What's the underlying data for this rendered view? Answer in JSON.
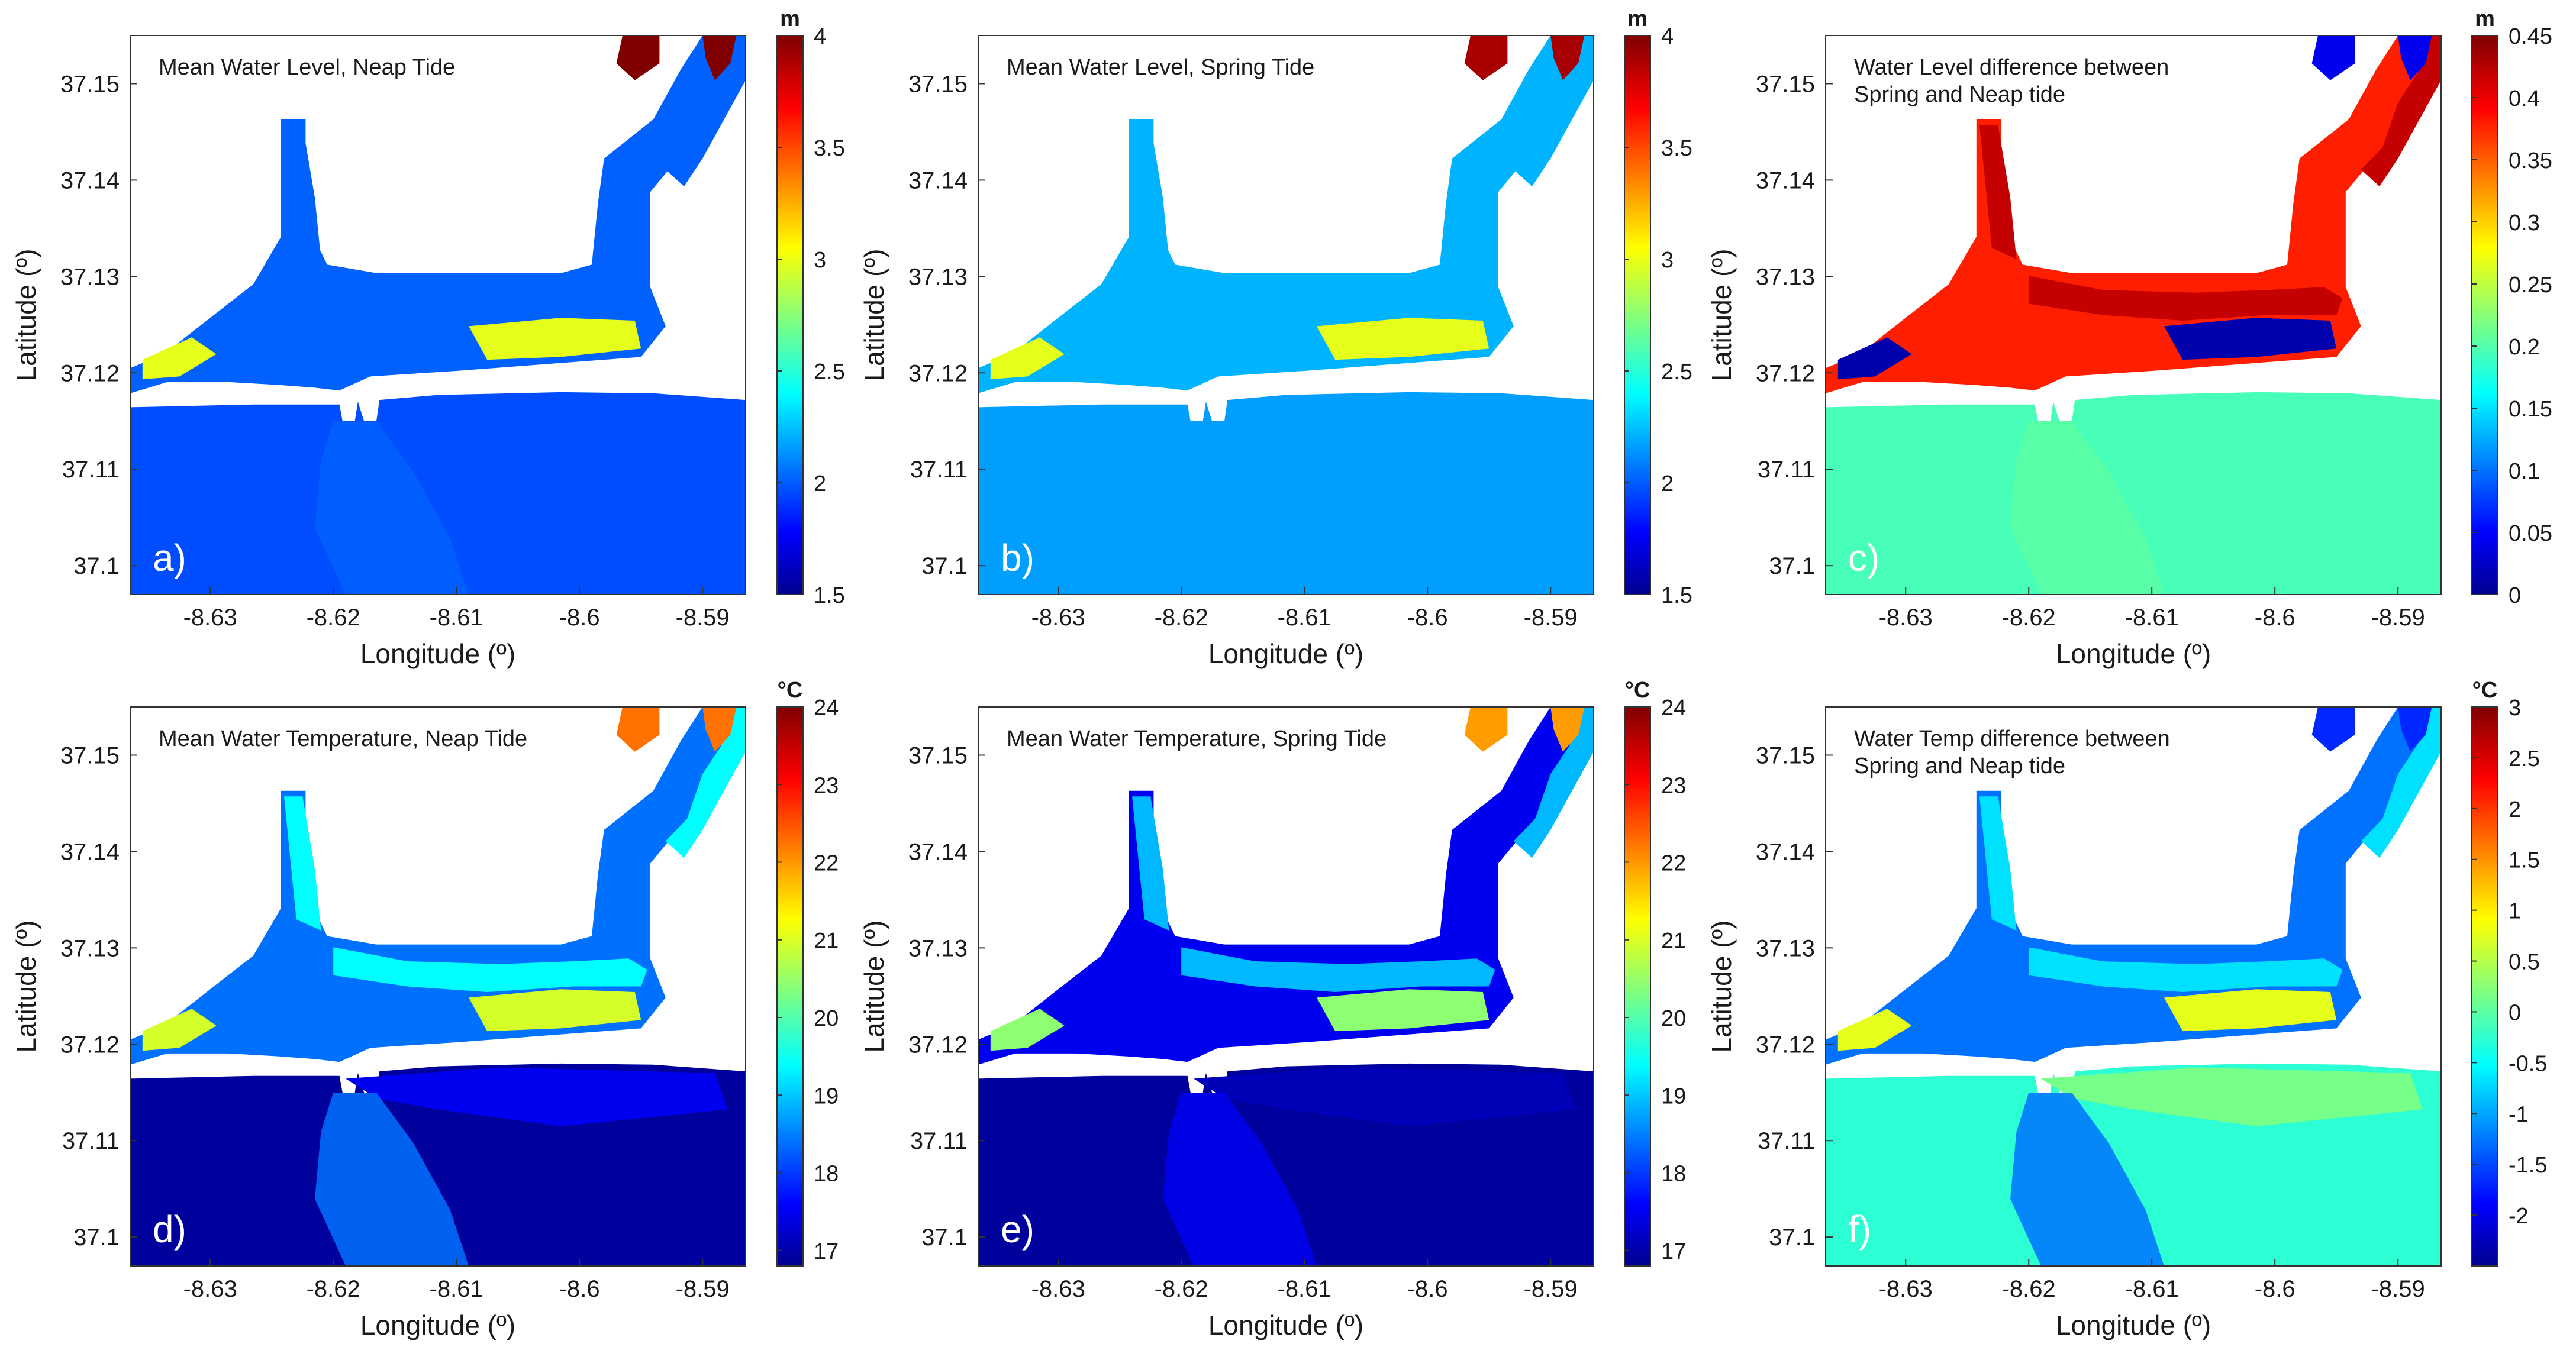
{
  "figure": {
    "colors": {
      "land": "#ffffff",
      "frame": "#333333",
      "text": "#1a1a1a",
      "panel_letter": "#ffffff",
      "colormap": "jet"
    }
  },
  "chart_data": [
    {
      "type": "heatmap",
      "panel": "a)",
      "title": "Mean Water Level, Neap Tide",
      "xlabel": "Longitude (º)",
      "ylabel": "Latitude (º)",
      "xlim": [
        -8.6365,
        -8.5865
      ],
      "ylim": [
        37.097,
        37.155
      ],
      "xticks": [
        -8.63,
        -8.62,
        -8.61,
        -8.6,
        -8.59
      ],
      "xtick_labels": [
        "-8.63",
        "-8.62",
        "-8.61",
        "-8.6",
        "-8.59"
      ],
      "yticks": [
        37.1,
        37.11,
        37.12,
        37.13,
        37.14,
        37.15
      ],
      "ytick_labels": [
        "37.1",
        "37.11",
        "37.12",
        "37.13",
        "37.14",
        "37.15"
      ],
      "colorbar": {
        "unit": "m",
        "min": 1.5,
        "max": 4,
        "ticks": [
          1.5,
          2,
          2.5,
          3,
          3.5,
          4
        ],
        "tick_labels": [
          "1.5",
          "2",
          "2.5",
          "3",
          "3.5",
          "4"
        ]
      },
      "field": {
        "ocean": 2.0,
        "lagoon": 2.05,
        "channels": 2.05,
        "tidal_flats": 3.0,
        "inlet_jet": 2.05,
        "upper_channels": 4.0
      },
      "grid": false,
      "legend": "colorbar-right"
    },
    {
      "type": "heatmap",
      "panel": "b)",
      "title": "Mean Water Level, Spring Tide",
      "xlabel": "Longitude (º)",
      "ylabel": "Latitude (º)",
      "xlim": [
        -8.6365,
        -8.5865
      ],
      "ylim": [
        37.097,
        37.155
      ],
      "xticks": [
        -8.63,
        -8.62,
        -8.61,
        -8.6,
        -8.59
      ],
      "xtick_labels": [
        "-8.63",
        "-8.62",
        "-8.61",
        "-8.6",
        "-8.59"
      ],
      "yticks": [
        37.1,
        37.11,
        37.12,
        37.13,
        37.14,
        37.15
      ],
      "ytick_labels": [
        "37.1",
        "37.11",
        "37.12",
        "37.13",
        "37.14",
        "37.15"
      ],
      "colorbar": {
        "unit": "m",
        "min": 1.5,
        "max": 4,
        "ticks": [
          1.5,
          2,
          2.5,
          3,
          3.5,
          4
        ],
        "tick_labels": [
          "1.5",
          "2",
          "2.5",
          "3",
          "3.5",
          "4"
        ]
      },
      "field": {
        "ocean": 2.2,
        "lagoon": 2.25,
        "channels": 2.25,
        "tidal_flats": 3.0,
        "inlet_jet": 2.2,
        "upper_channels": 3.9
      },
      "grid": false,
      "legend": "colorbar-right"
    },
    {
      "type": "heatmap",
      "panel": "c)",
      "title": "Water Level difference between Spring and Neap tide",
      "title_lines": [
        "Water Level difference between",
        "Spring and Neap tide"
      ],
      "xlabel": "Longitude (º)",
      "ylabel": "Latitude (º)",
      "xlim": [
        -8.6365,
        -8.5865
      ],
      "ylim": [
        37.097,
        37.155
      ],
      "xticks": [
        -8.63,
        -8.62,
        -8.61,
        -8.6,
        -8.59
      ],
      "xtick_labels": [
        "-8.63",
        "-8.62",
        "-8.61",
        "-8.6",
        "-8.59"
      ],
      "yticks": [
        37.1,
        37.11,
        37.12,
        37.13,
        37.14,
        37.15
      ],
      "ytick_labels": [
        "37.1",
        "37.11",
        "37.12",
        "37.13",
        "37.14",
        "37.15"
      ],
      "colorbar": {
        "unit": "m",
        "min": 0,
        "max": 0.45,
        "ticks": [
          0,
          0.05,
          0.1,
          0.15,
          0.2,
          0.25,
          0.3,
          0.35,
          0.4,
          0.45
        ],
        "tick_labels": [
          "0",
          "0.05",
          "0.1",
          "0.15",
          "0.2",
          "0.25",
          "0.3",
          "0.35",
          "0.4",
          "0.45"
        ]
      },
      "field": {
        "ocean": 0.2,
        "lagoon": 0.38,
        "channels": 0.42,
        "tidal_flats": 0.02,
        "inlet_jet": 0.21,
        "upper_channels": 0.05
      },
      "grid": false,
      "legend": "colorbar-right"
    },
    {
      "type": "heatmap",
      "panel": "d)",
      "title": "Mean Water Temperature, Neap Tide",
      "xlabel": "Longitude (º)",
      "ylabel": "Latitude (º)",
      "xlim": [
        -8.6365,
        -8.5865
      ],
      "ylim": [
        37.097,
        37.155
      ],
      "xticks": [
        -8.63,
        -8.62,
        -8.61,
        -8.6,
        -8.59
      ],
      "xtick_labels": [
        "-8.63",
        "-8.62",
        "-8.61",
        "-8.6",
        "-8.59"
      ],
      "yticks": [
        37.1,
        37.11,
        37.12,
        37.13,
        37.14,
        37.15
      ],
      "ytick_labels": [
        "37.1",
        "37.11",
        "37.12",
        "37.13",
        "37.14",
        "37.15"
      ],
      "colorbar": {
        "unit": "°C",
        "min": 16.8,
        "max": 24,
        "ticks": [
          17,
          18,
          19,
          20,
          21,
          22,
          23,
          24
        ],
        "tick_labels": [
          "17",
          "18",
          "19",
          "20",
          "21",
          "22",
          "23",
          "24"
        ]
      },
      "field": {
        "ocean": 17.0,
        "ocean_nearshore": 17.6,
        "lagoon": 18.5,
        "channels": 19.5,
        "tidal_flats": 21.0,
        "upper_channels": 22.3
      },
      "grid": false,
      "legend": "colorbar-right"
    },
    {
      "type": "heatmap",
      "panel": "e)",
      "title": "Mean Water Temperature, Spring Tide",
      "xlabel": "Longitude (º)",
      "ylabel": "Latitude (º)",
      "xlim": [
        -8.6365,
        -8.5865
      ],
      "ylim": [
        37.097,
        37.155
      ],
      "xticks": [
        -8.63,
        -8.62,
        -8.61,
        -8.6,
        -8.59
      ],
      "xtick_labels": [
        "-8.63",
        "-8.62",
        "-8.61",
        "-8.6",
        "-8.59"
      ],
      "yticks": [
        37.1,
        37.11,
        37.12,
        37.13,
        37.14,
        37.15
      ],
      "ytick_labels": [
        "37.1",
        "37.11",
        "37.12",
        "37.13",
        "37.14",
        "37.15"
      ],
      "colorbar": {
        "unit": "°C",
        "min": 16.8,
        "max": 24,
        "ticks": [
          17,
          18,
          19,
          20,
          21,
          22,
          23,
          24
        ],
        "tick_labels": [
          "17",
          "18",
          "19",
          "20",
          "21",
          "22",
          "23",
          "24"
        ]
      },
      "field": {
        "ocean": 17.0,
        "ocean_nearshore": 17.2,
        "lagoon": 17.6,
        "channels": 19.0,
        "tidal_flats": 20.5,
        "upper_channels": 22.0
      },
      "grid": false,
      "legend": "colorbar-right"
    },
    {
      "type": "heatmap",
      "panel": "f)",
      "title": "Water Temp difference between Spring and Neap tide",
      "title_lines": [
        "Water Temp difference between",
        "Spring and Neap tide"
      ],
      "xlabel": "Longitude (º)",
      "ylabel": "Latitude (º)",
      "xlim": [
        -8.6365,
        -8.5865
      ],
      "ylim": [
        37.097,
        37.155
      ],
      "xticks": [
        -8.63,
        -8.62,
        -8.61,
        -8.6,
        -8.59
      ],
      "xtick_labels": [
        "-8.63",
        "-8.62",
        "-8.61",
        "-8.6",
        "-8.59"
      ],
      "yticks": [
        37.1,
        37.11,
        37.12,
        37.13,
        37.14,
        37.15
      ],
      "ytick_labels": [
        "37.1",
        "37.11",
        "37.12",
        "37.13",
        "37.14",
        "37.15"
      ],
      "colorbar": {
        "unit": "°C",
        "min": -2.5,
        "max": 3,
        "ticks": [
          -2,
          -1.5,
          -1,
          -0.5,
          0,
          0.5,
          1,
          1.5,
          2,
          2.5,
          3
        ],
        "tick_labels": [
          "-2",
          "-1.5",
          "-1",
          "-0.5",
          "0",
          "0.5",
          "1",
          "1.5",
          "2",
          "2.5",
          "3"
        ]
      },
      "field": {
        "ocean": -0.2,
        "ocean_nearshore": 0.2,
        "lagoon": -1.2,
        "channels": -0.6,
        "tidal_flats": 0.8,
        "upper_channels": -1.6
      },
      "grid": false,
      "legend": "colorbar-right"
    }
  ]
}
